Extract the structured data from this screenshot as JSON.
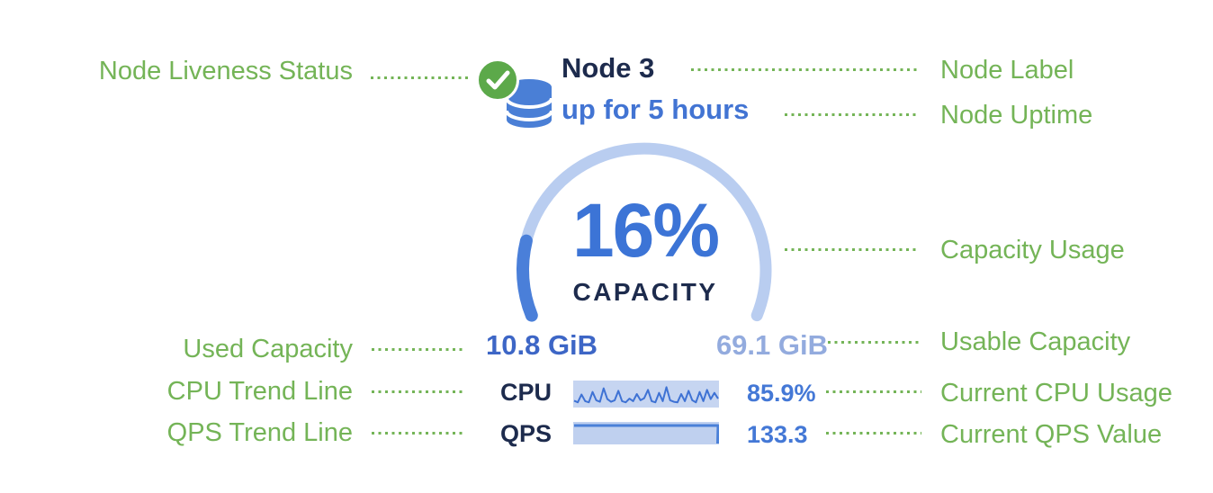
{
  "colors": {
    "annotation_green": "#74b457",
    "value_blue": "#4478d6",
    "navy": "#1d2b4d",
    "gauge_track": "#b9cdf0",
    "gauge_fill": "#4a7fd9",
    "spark_bg": "#c6d5f1",
    "muted_blue": "#93abde",
    "liveness_green": "#5ca94a",
    "db_blue": "#4a7fd6"
  },
  "annotations": {
    "left": [
      "Node Liveness Status",
      "Used Capacity",
      "CPU Trend Line",
      "QPS Trend Line"
    ],
    "right": [
      "Node Label",
      "Node Uptime",
      "Capacity Usage",
      "Usable Capacity",
      "Current CPU Usage",
      "Current QPS Value"
    ]
  },
  "node": {
    "label": "Node 3",
    "uptime": "up for 5 hours",
    "liveness_icon": "check-circle-icon",
    "node_icon": "database-icon",
    "capacity": {
      "percent_label": "16%",
      "percent_value": 16,
      "caption": "CAPACITY",
      "used": "10.8 GiB",
      "usable": "69.1 GiB"
    },
    "cpu": {
      "label": "CPU",
      "value": "85.9%",
      "trend": [
        0.2,
        0.12,
        0.5,
        0.18,
        0.12,
        0.62,
        0.22,
        0.15,
        0.8,
        0.28,
        0.15,
        0.22,
        0.68,
        0.18,
        0.12,
        0.3,
        0.18,
        0.52,
        0.22,
        0.32,
        0.72,
        0.18,
        0.12,
        0.58,
        0.18,
        0.85,
        0.22,
        0.15,
        0.12,
        0.52,
        0.18,
        0.68,
        0.22,
        0.12,
        0.62,
        0.18,
        0.72,
        0.28,
        0.58,
        0.3
      ]
    },
    "qps": {
      "label": "QPS",
      "value": "133.3",
      "trend": [
        1,
        1,
        1,
        1,
        1,
        1,
        1,
        1
      ]
    }
  }
}
